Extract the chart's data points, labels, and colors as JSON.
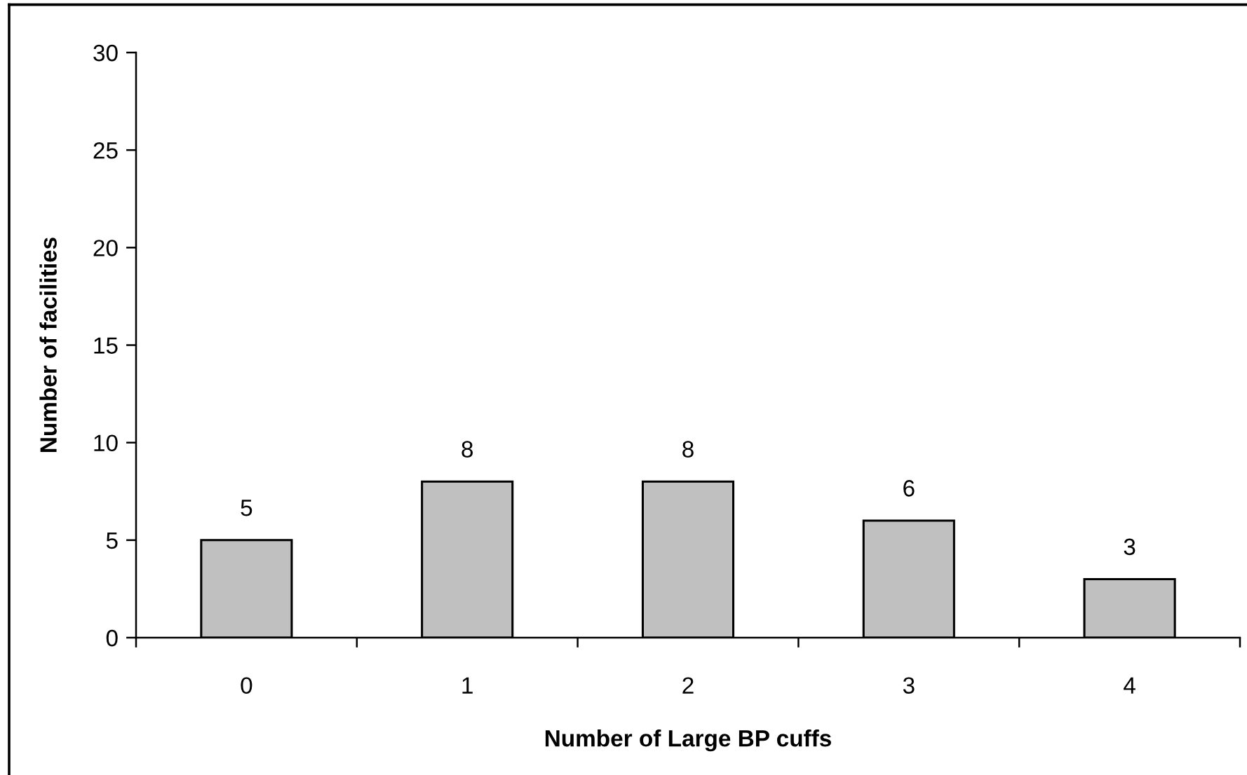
{
  "chart_data": {
    "type": "bar",
    "xlabel": "Number of Large BP cuffs",
    "ylabel": "Number of facilities",
    "categories": [
      "0",
      "1",
      "2",
      "3",
      "4"
    ],
    "values": [
      5,
      8,
      8,
      6,
      3
    ],
    "color": "#c0c0c0",
    "ylim": [
      0,
      30
    ],
    "yticks": [
      0,
      5,
      10,
      15,
      20,
      25,
      30
    ],
    "data_labels": true
  }
}
